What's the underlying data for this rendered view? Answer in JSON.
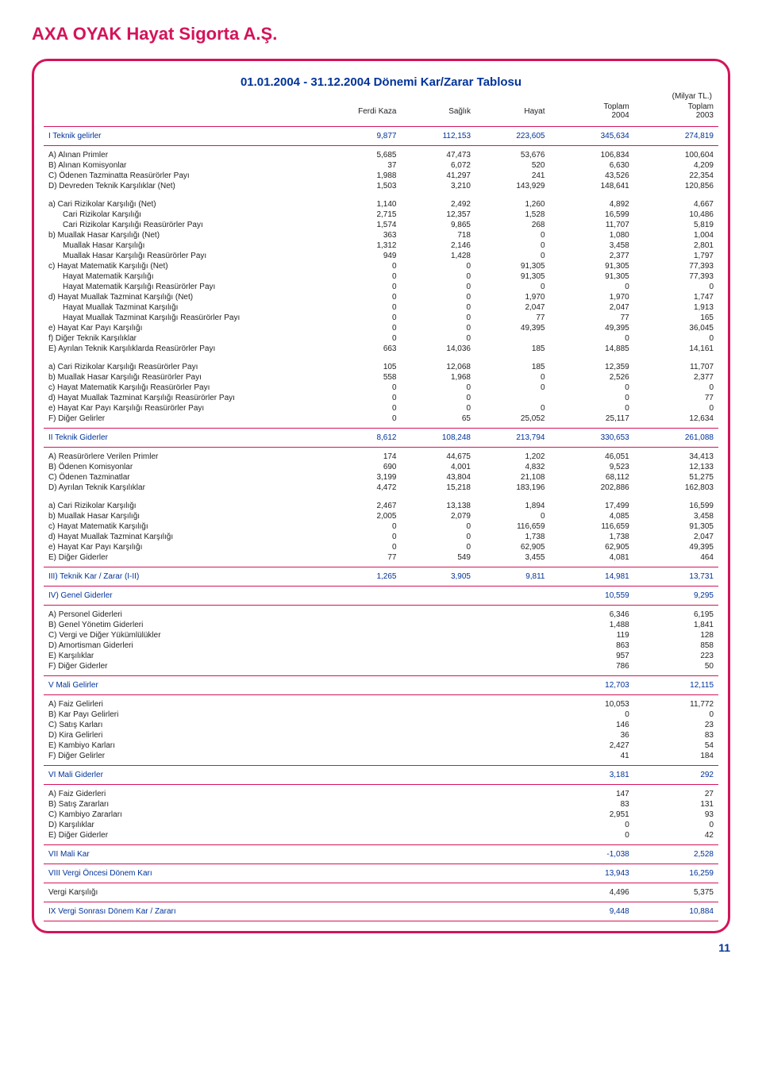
{
  "page": {
    "title": "AXA OYAK Hayat Sigorta A.Ş.",
    "table_title": "01.01.2004 - 31.12.2004 Dönemi Kar/Zarar Tablosu",
    "unit": "(Milyar TL.)",
    "page_number": "11"
  },
  "columns": [
    "",
    "Ferdi Kaza",
    "Sağlık",
    "Hayat",
    "Toplam 2004",
    "Toplam 2003"
  ],
  "rows": [
    {
      "type": "section",
      "border": true,
      "cells": [
        "I Teknik gelirler",
        "9,877",
        "112,153",
        "223,605",
        "345,634",
        "274,819"
      ]
    },
    {
      "type": "data",
      "start": true,
      "cells": [
        "A) Alınan Primler",
        "5,685",
        "47,473",
        "53,676",
        "106,834",
        "100,604"
      ]
    },
    {
      "type": "data",
      "cells": [
        "B) Alınan Komisyonlar",
        "37",
        "6,072",
        "520",
        "6,630",
        "4,209"
      ]
    },
    {
      "type": "data",
      "cells": [
        "C) Ödenen Tazminatta Reasürörler Payı",
        "1,988",
        "41,297",
        "241",
        "43,526",
        "22,354"
      ]
    },
    {
      "type": "data",
      "end": true,
      "cells": [
        "D) Devreden Teknik Karşılıklar (Net)",
        "1,503",
        "3,210",
        "143,929",
        "148,641",
        "120,856"
      ]
    },
    {
      "type": "data",
      "start": true,
      "cells": [
        "a) Cari Rizikolar Karşılığı (Net)",
        "1,140",
        "2,492",
        "1,260",
        "4,892",
        "4,667"
      ]
    },
    {
      "type": "data",
      "indent": 1,
      "cells": [
        "Cari Rizikolar Karşılığı",
        "2,715",
        "12,357",
        "1,528",
        "16,599",
        "10,486"
      ]
    },
    {
      "type": "data",
      "indent": 1,
      "cells": [
        "Cari Rizikolar Karşılığı Reasürörler Payı",
        "1,574",
        "9,865",
        "268",
        "11,707",
        "5,819"
      ]
    },
    {
      "type": "data",
      "cells": [
        "b) Muallak Hasar Karşılığı (Net)",
        "363",
        "718",
        "0",
        "1,080",
        "1,004"
      ]
    },
    {
      "type": "data",
      "indent": 1,
      "cells": [
        "Muallak Hasar Karşılığı",
        "1,312",
        "2,146",
        "0",
        "3,458",
        "2,801"
      ]
    },
    {
      "type": "data",
      "indent": 1,
      "cells": [
        "Muallak Hasar Karşılığı Reasürörler Payı",
        "949",
        "1,428",
        "0",
        "2,377",
        "1,797"
      ]
    },
    {
      "type": "data",
      "cells": [
        "c) Hayat Matematik Karşılığı (Net)",
        "0",
        "0",
        "91,305",
        "91,305",
        "77,393"
      ]
    },
    {
      "type": "data",
      "indent": 1,
      "cells": [
        "Hayat Matematik Karşılığı",
        "0",
        "0",
        "91,305",
        "91,305",
        "77,393"
      ]
    },
    {
      "type": "data",
      "indent": 1,
      "cells": [
        "Hayat Matematik Karşılığı Reasürörler Payı",
        "0",
        "0",
        "0",
        "0",
        "0"
      ]
    },
    {
      "type": "data",
      "cells": [
        "d) Hayat Muallak Tazminat Karşılığı (Net)",
        "0",
        "0",
        "1,970",
        "1,970",
        "1,747"
      ]
    },
    {
      "type": "data",
      "indent": 1,
      "cells": [
        "Hayat Muallak Tazminat Karşılığı",
        "0",
        "0",
        "2,047",
        "2,047",
        "1,913"
      ]
    },
    {
      "type": "data",
      "indent": 1,
      "cells": [
        "Hayat Muallak Tazminat Karşılığı Reasürörler Payı",
        "0",
        "0",
        "77",
        "77",
        "165"
      ]
    },
    {
      "type": "data",
      "cells": [
        "e) Hayat Kar Payı Karşılığı",
        "0",
        "0",
        "49,395",
        "49,395",
        "36,045"
      ]
    },
    {
      "type": "data",
      "cells": [
        "f)  Diğer Teknik Karşılıklar",
        "0",
        "0",
        "",
        "0",
        "0"
      ]
    },
    {
      "type": "data",
      "end": true,
      "cells": [
        "E) Ayrılan Teknik Karşılıklarda Reasürörler Payı",
        "663",
        "14,036",
        "185",
        "14,885",
        "14,161"
      ]
    },
    {
      "type": "data",
      "start": true,
      "cells": [
        "a) Cari Rizikolar Karşılığı Reasürörler Payı",
        "105",
        "12,068",
        "185",
        "12,359",
        "11,707"
      ]
    },
    {
      "type": "data",
      "cells": [
        "b) Muallak Hasar Karşılığı Reasürörler Payı",
        "558",
        "1,968",
        "0",
        "2,526",
        "2,377"
      ]
    },
    {
      "type": "data",
      "cells": [
        "c) Hayat Matematik Karşılığı Reasürörler Payı",
        "0",
        "0",
        "0",
        "0",
        "0"
      ]
    },
    {
      "type": "data",
      "cells": [
        "d) Hayat Muallak Tazminat Karşılığı Reasürörler Payı",
        "0",
        "0",
        "",
        "0",
        "77"
      ]
    },
    {
      "type": "data",
      "cells": [
        "e) Hayat Kar Payı Karşılığı Reasürörler Payı",
        "0",
        "0",
        "0",
        "0",
        "0"
      ]
    },
    {
      "type": "data",
      "end": true,
      "cells": [
        "F) Diğer Gelirler",
        "0",
        "65",
        "25,052",
        "25,117",
        "12,634"
      ]
    },
    {
      "type": "section",
      "border": true,
      "cells": [
        "II Teknik Giderler",
        "8,612",
        "108,248",
        "213,794",
        "330,653",
        "261,088"
      ]
    },
    {
      "type": "data",
      "start": true,
      "cells": [
        "A) Reasürörlere Verilen Primler",
        "174",
        "44,675",
        "1,202",
        "46,051",
        "34,413"
      ]
    },
    {
      "type": "data",
      "cells": [
        "B) Ödenen Komisyonlar",
        "690",
        "4,001",
        "4,832",
        "9,523",
        "12,133"
      ]
    },
    {
      "type": "data",
      "cells": [
        "C) Ödenen Tazminatlar",
        "3,199",
        "43,804",
        "21,108",
        "68,112",
        "51,275"
      ]
    },
    {
      "type": "data",
      "end": true,
      "cells": [
        "D) Ayrılan Teknik Karşılıklar",
        "4,472",
        "15,218",
        "183,196",
        "202,886",
        "162,803"
      ]
    },
    {
      "type": "data",
      "start": true,
      "cells": [
        "a) Cari Rizikolar Karşılığı",
        "2,467",
        "13,138",
        "1,894",
        "17,499",
        "16,599"
      ]
    },
    {
      "type": "data",
      "cells": [
        "b) Muallak Hasar Karşılığı",
        "2,005",
        "2,079",
        "0",
        "4,085",
        "3,458"
      ]
    },
    {
      "type": "data",
      "cells": [
        "c) Hayat Matematik Karşılığı",
        "0",
        "0",
        "116,659",
        "116,659",
        "91,305"
      ]
    },
    {
      "type": "data",
      "cells": [
        "d) Hayat Muallak Tazminat Karşılığı",
        "0",
        "0",
        "1,738",
        "1,738",
        "2,047"
      ]
    },
    {
      "type": "data",
      "cells": [
        "e) Hayat Kar Payı Karşılığı",
        "0",
        "0",
        "62,905",
        "62,905",
        "49,395"
      ]
    },
    {
      "type": "data",
      "end": true,
      "cells": [
        "E) Diğer Giderler",
        "77",
        "549",
        "3,455",
        "4,081",
        "464"
      ]
    },
    {
      "type": "section",
      "border": true,
      "cells": [
        "III) Teknik Kar / Zarar (I-II)",
        "1,265",
        "3,905",
        "9,811",
        "14,981",
        "13,731"
      ]
    },
    {
      "type": "section",
      "border": true,
      "cells": [
        "IV) Genel Giderler",
        "",
        "",
        "",
        "10,559",
        "9,295"
      ]
    },
    {
      "type": "data",
      "start": true,
      "cells": [
        "A) Personel Giderleri",
        "",
        "",
        "",
        "6,346",
        "6,195"
      ]
    },
    {
      "type": "data",
      "cells": [
        "B) Genel Yönetim Giderleri",
        "",
        "",
        "",
        "1,488",
        "1,841"
      ]
    },
    {
      "type": "data",
      "cells": [
        "C) Vergi ve Diğer Yükümlülükler",
        "",
        "",
        "",
        "119",
        "128"
      ]
    },
    {
      "type": "data",
      "cells": [
        "D) Amortisman Giderleri",
        "",
        "",
        "",
        "863",
        "858"
      ]
    },
    {
      "type": "data",
      "cells": [
        "E) Karşılıklar",
        "",
        "",
        "",
        "957",
        "223"
      ]
    },
    {
      "type": "data",
      "end": true,
      "cells": [
        "F) Diğer Giderler",
        "",
        "",
        "",
        "786",
        "50"
      ]
    },
    {
      "type": "section",
      "border": true,
      "cells": [
        "V Mali Gelirler",
        "",
        "",
        "",
        "12,703",
        "12,115"
      ]
    },
    {
      "type": "data",
      "start": true,
      "cells": [
        "A) Faiz Gelirleri",
        "",
        "",
        "",
        "10,053",
        "11,772"
      ]
    },
    {
      "type": "data",
      "cells": [
        "B) Kar Payı Gelirleri",
        "",
        "",
        "",
        "0",
        "0"
      ]
    },
    {
      "type": "data",
      "cells": [
        "C) Satış Karları",
        "",
        "",
        "",
        "146",
        "23"
      ]
    },
    {
      "type": "data",
      "cells": [
        "D) Kira Gelirleri",
        "",
        "",
        "",
        "36",
        "83"
      ]
    },
    {
      "type": "data",
      "cells": [
        "E) Kambiyo Karları",
        "",
        "",
        "",
        "2,427",
        "54"
      ]
    },
    {
      "type": "data",
      "end": true,
      "cells": [
        "F) Diğer Gelirler",
        "",
        "",
        "",
        "41",
        "184"
      ]
    },
    {
      "type": "section",
      "border": true,
      "cells": [
        "VI Mali Giderler",
        "",
        "",
        "",
        "3,181",
        "292"
      ]
    },
    {
      "type": "data",
      "start": true,
      "cells": [
        "A) Faiz Giderleri",
        "",
        "",
        "",
        "147",
        "27"
      ]
    },
    {
      "type": "data",
      "cells": [
        "B) Satış Zararları",
        "",
        "",
        "",
        "83",
        "131"
      ]
    },
    {
      "type": "data",
      "cells": [
        "C) Kambiyo Zararları",
        "",
        "",
        "",
        "2,951",
        "93"
      ]
    },
    {
      "type": "data",
      "cells": [
        "D) Karşılıklar",
        "",
        "",
        "",
        "0",
        "0"
      ]
    },
    {
      "type": "data",
      "end": true,
      "cells": [
        "E) Diğer Giderler",
        "",
        "",
        "",
        "0",
        "42"
      ]
    },
    {
      "type": "section",
      "border": true,
      "cells": [
        "VII Mali Kar",
        "",
        "",
        "",
        "-1,038",
        "2,528"
      ]
    },
    {
      "type": "section",
      "border": true,
      "cells": [
        "VIII Vergi Öncesi Dönem Karı",
        "",
        "",
        "",
        "13,943",
        "16,259"
      ]
    },
    {
      "type": "data",
      "start": true,
      "end": true,
      "cells": [
        "Vergi Karşılığı",
        "",
        "",
        "",
        "4,496",
        "5,375"
      ]
    },
    {
      "type": "section",
      "border": true,
      "cells": [
        "IX Vergi Sonrası Dönem Kar / Zararı",
        "",
        "",
        "",
        "9,448",
        "10,884"
      ]
    }
  ],
  "col_widths": [
    "42%",
    "11%",
    "11%",
    "11%",
    "12.5%",
    "12.5%"
  ]
}
